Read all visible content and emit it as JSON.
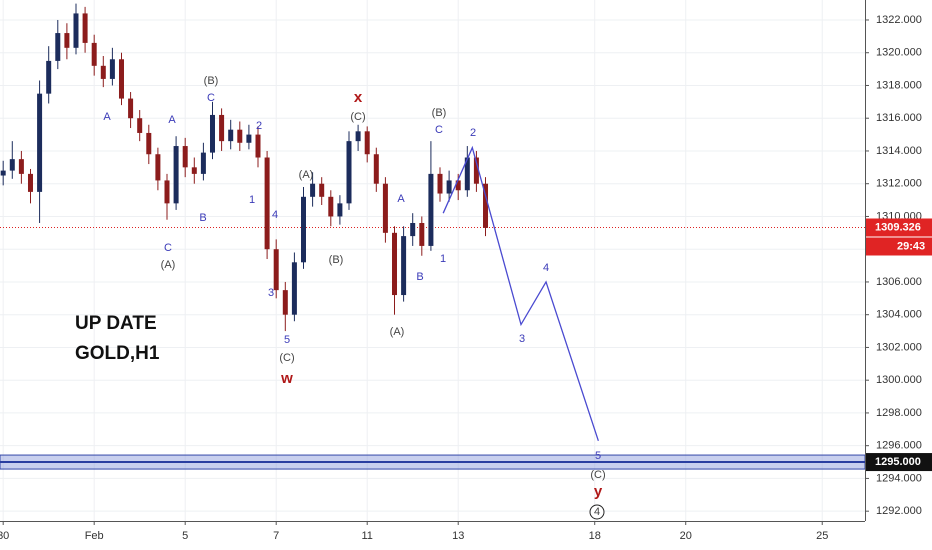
{
  "chart_data": {
    "type": "candlestick",
    "title_lines": [
      "UP DATE",
      "GOLD,H1"
    ],
    "x": [
      0,
      0.2,
      0.4,
      0.6,
      0.8,
      1.0,
      1.2,
      1.4,
      1.6,
      1.8,
      2.0,
      2.2,
      2.4,
      2.6,
      2.8,
      3.0,
      3.2,
      3.4,
      3.6,
      3.8,
      4.0,
      4.2,
      4.4,
      4.6,
      4.8,
      5.0,
      5.2,
      5.4,
      5.6,
      5.8,
      6.0,
      6.2,
      6.4,
      6.6,
      6.8,
      7.0,
      7.2,
      7.4,
      7.6,
      7.8,
      8.0,
      8.2,
      8.4,
      8.6,
      8.8,
      9.0,
      9.2,
      9.4,
      9.6,
      9.8,
      10.0,
      10.2,
      10.4,
      10.6
    ],
    "open": [
      1312.5,
      1312.8,
      1313.5,
      1312.6,
      1311.5,
      1317.5,
      1319.5,
      1321.2,
      1320.3,
      1322.4,
      1320.6,
      1319.2,
      1318.4,
      1319.6,
      1317.2,
      1316.0,
      1315.1,
      1313.8,
      1312.2,
      1310.8,
      1314.3,
      1313.0,
      1312.6,
      1313.9,
      1316.2,
      1314.6,
      1315.3,
      1314.5,
      1315.0,
      1313.6,
      1308.0,
      1305.5,
      1304.0,
      1307.2,
      1311.2,
      1312.0,
      1311.2,
      1310.0,
      1310.8,
      1314.6,
      1315.2,
      1313.8,
      1312.0,
      1309.0,
      1305.2,
      1308.8,
      1309.6,
      1308.2,
      1312.6,
      1311.4,
      1312.2,
      1311.6,
      1313.6,
      1312.0
    ],
    "high": [
      1313.4,
      1314.6,
      1314.0,
      1312.9,
      1318.3,
      1320.4,
      1322.0,
      1321.8,
      1323.0,
      1322.8,
      1321.1,
      1319.8,
      1320.3,
      1320.0,
      1317.6,
      1316.5,
      1315.6,
      1314.2,
      1312.6,
      1314.9,
      1314.8,
      1313.6,
      1314.5,
      1317.0,
      1316.6,
      1315.9,
      1315.8,
      1315.6,
      1315.5,
      1314.0,
      1308.6,
      1306.0,
      1307.8,
      1311.8,
      1312.7,
      1312.4,
      1311.6,
      1311.3,
      1315.2,
      1315.6,
      1315.5,
      1314.2,
      1312.4,
      1309.4,
      1309.4,
      1310.2,
      1310.0,
      1314.6,
      1313.0,
      1312.8,
      1312.6,
      1314.3,
      1314.0,
      1312.4
    ],
    "low": [
      1311.9,
      1312.3,
      1312.0,
      1310.8,
      1309.6,
      1316.9,
      1319.0,
      1319.6,
      1319.9,
      1320.0,
      1318.6,
      1317.9,
      1318.0,
      1316.8,
      1315.4,
      1314.6,
      1313.2,
      1311.6,
      1309.8,
      1310.4,
      1312.4,
      1312.0,
      1312.2,
      1313.5,
      1314.0,
      1314.1,
      1314.0,
      1314.1,
      1313.0,
      1307.4,
      1305.0,
      1303.0,
      1303.6,
      1306.8,
      1310.6,
      1310.7,
      1309.4,
      1309.5,
      1310.4,
      1314.0,
      1313.3,
      1311.5,
      1308.4,
      1304.0,
      1304.8,
      1308.2,
      1307.6,
      1307.9,
      1310.9,
      1310.9,
      1311.0,
      1311.2,
      1311.5,
      1308.8
    ],
    "close": [
      1312.8,
      1313.5,
      1312.6,
      1311.5,
      1317.5,
      1319.5,
      1321.2,
      1320.3,
      1322.4,
      1320.6,
      1319.2,
      1318.4,
      1319.6,
      1317.2,
      1316.0,
      1315.1,
      1313.8,
      1312.2,
      1310.8,
      1314.3,
      1313.0,
      1312.6,
      1313.9,
      1316.2,
      1314.6,
      1315.3,
      1314.5,
      1315.0,
      1313.6,
      1308.0,
      1305.5,
      1304.0,
      1307.2,
      1311.2,
      1312.0,
      1311.2,
      1310.0,
      1310.8,
      1314.6,
      1315.2,
      1313.8,
      1312.0,
      1309.0,
      1305.2,
      1308.8,
      1309.6,
      1308.2,
      1312.6,
      1311.4,
      1312.2,
      1311.6,
      1313.6,
      1312.0,
      1309.3
    ],
    "up_color": "#1c2c5c",
    "down_color": "#8c1c1c",
    "wave": {
      "color": "#4a4ad0",
      "x": [
        9.67,
        10.31,
        11.38,
        11.93,
        13.08
      ],
      "values": [
        1310.2,
        1314.2,
        1303.4,
        1306.0,
        1296.3
      ]
    },
    "annotations": [
      "A",
      "C",
      "(A)",
      "A",
      "B",
      "(B)",
      "C",
      "1",
      "2",
      "4",
      "3",
      "5",
      "(C)",
      "w",
      "(A)",
      "(B)",
      "x",
      "(C)",
      "(A)",
      "A",
      "B",
      "1",
      "(B)",
      "C",
      "2",
      "3",
      "4",
      "5",
      "(C)",
      "y",
      "4"
    ],
    "last_price": {
      "value": 1309.326,
      "label": "1309.326"
    },
    "countdown": "29:43",
    "level": {
      "value": 1295,
      "label": "1295.000"
    },
    "xlim": [
      -0.07,
      18.94
    ],
    "xticks": [
      {
        "value": 0,
        "label": "30"
      },
      {
        "value": 2,
        "label": "Feb"
      },
      {
        "value": 4,
        "label": "5"
      },
      {
        "value": 6,
        "label": "7"
      },
      {
        "value": 8,
        "label": "11"
      },
      {
        "value": 10,
        "label": "13"
      },
      {
        "value": 13,
        "label": "18"
      },
      {
        "value": 15,
        "label": "20"
      },
      {
        "value": 18,
        "label": "25"
      }
    ],
    "ylim": [
      1291.4,
      1323.22
    ],
    "yticks": [
      {
        "value": 1292,
        "label": "1292.000"
      },
      {
        "value": 1294,
        "label": "1294.000"
      },
      {
        "value": 1296,
        "label": "1296.000"
      },
      {
        "value": 1298,
        "label": "1298.000"
      },
      {
        "value": 1300,
        "label": "1300.000"
      },
      {
        "value": 1302,
        "label": "1302.000"
      },
      {
        "value": 1304,
        "label": "1304.000"
      },
      {
        "value": 1306,
        "label": "1306.000"
      },
      {
        "value": 1308,
        "label": "1308.000"
      },
      {
        "value": 1310,
        "label": "1310.000"
      },
      {
        "value": 1312,
        "label": "1312.000"
      },
      {
        "value": 1314,
        "label": "1314.000"
      },
      {
        "value": 1316,
        "label": "1316.000"
      },
      {
        "value": 1318,
        "label": "1318.000"
      },
      {
        "value": 1320,
        "label": "1320.000"
      },
      {
        "value": 1322,
        "label": "1322.000"
      }
    ],
    "grid": true
  }
}
